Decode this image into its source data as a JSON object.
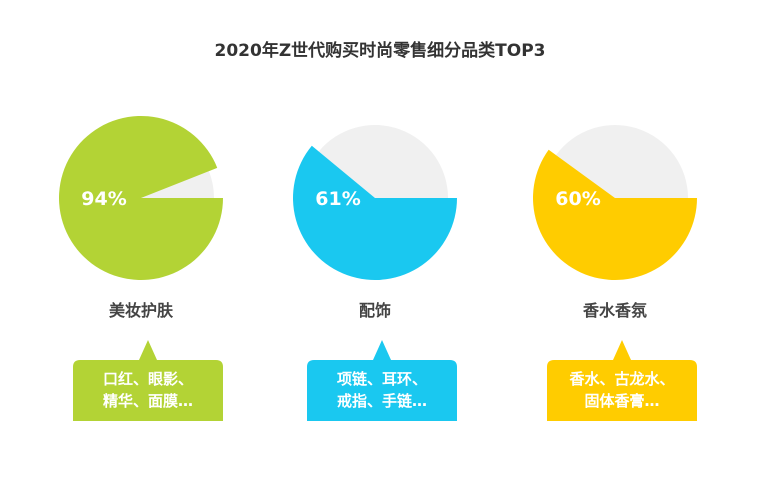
{
  "chart_data": {
    "type": "pie",
    "title": "2020年Z世代购买时尚零售细分品类TOP3",
    "unit": "%",
    "items": [
      {
        "category": "美妆护肤",
        "value": 94,
        "label": "94%",
        "color": "#b3d335",
        "notes": [
          "口红、眼影、",
          "精华、面膜…"
        ]
      },
      {
        "category": "配饰",
        "value": 61,
        "label": "61%",
        "color": "#1ac8f0",
        "notes": [
          "项链、耳环、",
          "戒指、手链…"
        ]
      },
      {
        "category": "香水香氛",
        "value": 60,
        "label": "60%",
        "color": "#ffcc00",
        "notes": [
          "香水、古龙水、",
          "固体香膏…"
        ]
      }
    ],
    "remainder_color": "#f0f0f0"
  }
}
